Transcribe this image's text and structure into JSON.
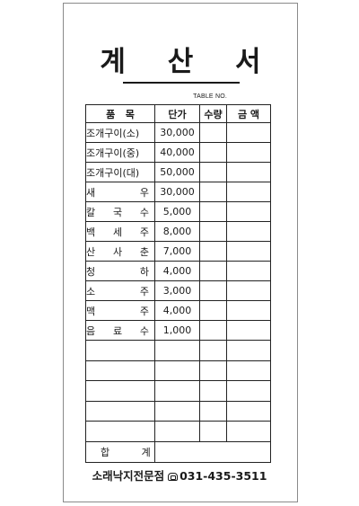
{
  "document": {
    "title": "계 산 서",
    "table_no_label": "TABLE NO.",
    "headers": {
      "item": "품   목",
      "price": "단가",
      "qty": "수량",
      "amount": "금 액"
    },
    "items": [
      {
        "name": [
          "조개구이(소)"
        ],
        "price": "30,000"
      },
      {
        "name": [
          "조개구이(중)"
        ],
        "price": "40,000"
      },
      {
        "name": [
          "조개구이(대)"
        ],
        "price": "50,000"
      },
      {
        "name": [
          "새",
          "우"
        ],
        "price": "30,000"
      },
      {
        "name": [
          "칼",
          "국",
          "수"
        ],
        "price": "5,000"
      },
      {
        "name": [
          "백",
          "세",
          "주"
        ],
        "price": "8,000"
      },
      {
        "name": [
          "산",
          "사",
          "춘"
        ],
        "price": "7,000"
      },
      {
        "name": [
          "청",
          "하"
        ],
        "price": "4,000"
      },
      {
        "name": [
          "소",
          "주"
        ],
        "price": "3,000"
      },
      {
        "name": [
          "맥",
          "주"
        ],
        "price": "4,000"
      },
      {
        "name": [
          "음",
          "료",
          "수"
        ],
        "price": "1,000"
      }
    ],
    "total_label": "합 계",
    "footer": {
      "shop": "소래낙지전문점",
      "phone": "031-435-3511"
    }
  }
}
